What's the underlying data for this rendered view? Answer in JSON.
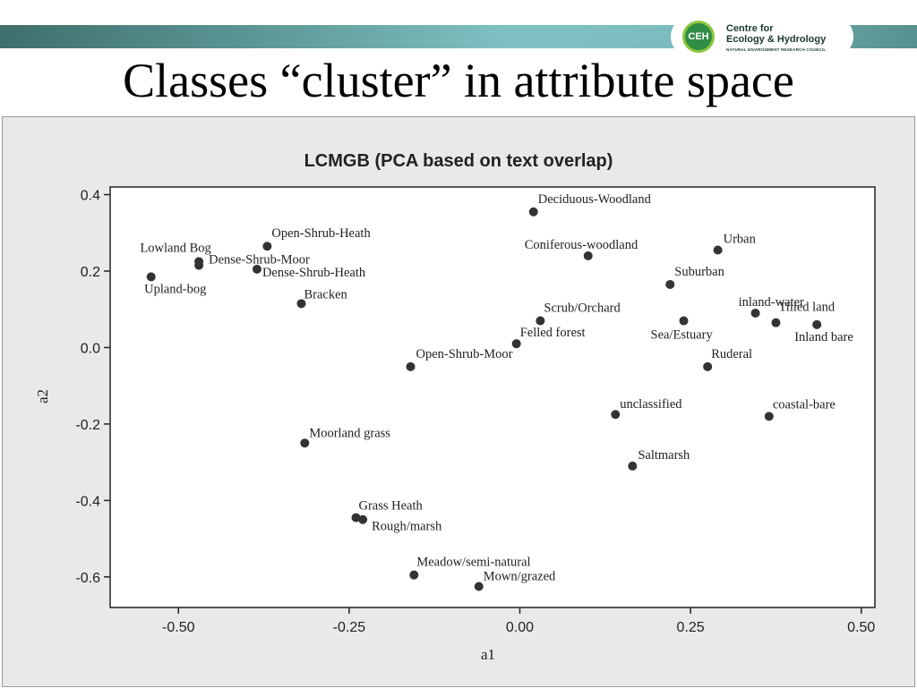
{
  "slide": {
    "title": "Classes “cluster” in attribute space",
    "logo": {
      "line1": "Centre for",
      "line2": "Ecology & Hydrology",
      "line3": "NATURAL ENVIRONMENT RESEARCH COUNCIL",
      "mark": "CEH"
    }
  },
  "chart_data": {
    "type": "scatter",
    "title": "LCMGB (PCA based on text overlap)",
    "xlabel": "a1",
    "ylabel": "a2",
    "xlim": [
      -0.6,
      0.52
    ],
    "ylim": [
      -0.68,
      0.42
    ],
    "xticks": [
      -0.5,
      -0.25,
      0.0,
      0.25,
      0.5
    ],
    "xtick_labels": [
      "-0.50",
      "-0.25",
      "0.00",
      "0.25",
      "0.50"
    ],
    "yticks": [
      0.4,
      0.2,
      0.0,
      -0.2,
      -0.4,
      -0.6
    ],
    "ytick_labels": [
      "0.4",
      "0.2",
      "0.0",
      "-0.2",
      "-0.4",
      "-0.6"
    ],
    "grid": false,
    "marker_color": "#333333",
    "points": [
      {
        "label": "Deciduous-Woodland",
        "x": 0.02,
        "y": 0.355
      },
      {
        "label": "Open-Shrub-Heath",
        "x": -0.37,
        "y": 0.265
      },
      {
        "label": "Lowland Bog",
        "x": -0.47,
        "y": 0.225
      },
      {
        "label": "Dense-Shrub-Moor",
        "x": -0.47,
        "y": 0.215
      },
      {
        "label": "Dense-Shrub-Heath",
        "x": -0.385,
        "y": 0.205
      },
      {
        "label": "Upland-bog",
        "x": -0.54,
        "y": 0.185
      },
      {
        "label": "Bracken",
        "x": -0.32,
        "y": 0.115
      },
      {
        "label": "Coniferous-woodland",
        "x": 0.1,
        "y": 0.24
      },
      {
        "label": "Urban",
        "x": 0.29,
        "y": 0.255
      },
      {
        "label": "Suburban",
        "x": 0.22,
        "y": 0.165
      },
      {
        "label": "Scrub/Orchard",
        "x": 0.03,
        "y": 0.07
      },
      {
        "label": "Felled forest",
        "x": -0.005,
        "y": 0.01
      },
      {
        "label": "Open-Shrub-Moor",
        "x": -0.16,
        "y": -0.05
      },
      {
        "label": "Sea/Estuary",
        "x": 0.24,
        "y": 0.07
      },
      {
        "label": "inland-water",
        "x": 0.345,
        "y": 0.09
      },
      {
        "label": "Tilled land",
        "x": 0.375,
        "y": 0.065
      },
      {
        "label": "Inland bare",
        "x": 0.435,
        "y": 0.06
      },
      {
        "label": "Ruderal",
        "x": 0.275,
        "y": -0.05
      },
      {
        "label": "unclassified",
        "x": 0.14,
        "y": -0.175
      },
      {
        "label": "coastal-bare",
        "x": 0.365,
        "y": -0.18
      },
      {
        "label": "Saltmarsh",
        "x": 0.165,
        "y": -0.31
      },
      {
        "label": "Moorland grass",
        "x": -0.315,
        "y": -0.25
      },
      {
        "label": "Grass Heath",
        "x": -0.24,
        "y": -0.445
      },
      {
        "label": "Rough/marsh",
        "x": -0.23,
        "y": -0.45
      },
      {
        "label": "Meadow/semi-natural",
        "x": -0.155,
        "y": -0.595
      },
      {
        "label": "Mown/grazed",
        "x": -0.06,
        "y": -0.625
      }
    ]
  }
}
